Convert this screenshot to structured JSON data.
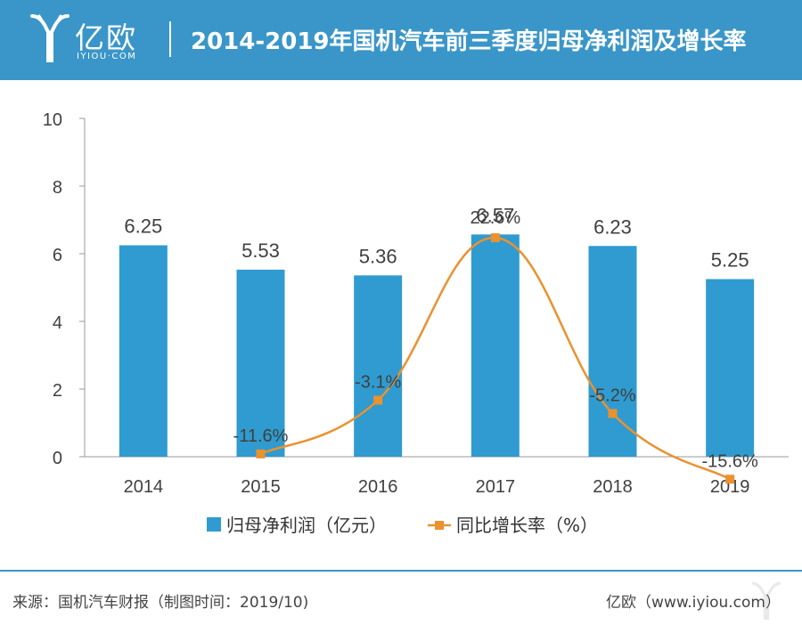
{
  "header": {
    "logo_cn": "亿欧",
    "logo_en": "IYIOU·COM",
    "title": "2014-2019年国机汽车前三季度归母净利润及增长率"
  },
  "colors": {
    "header_bg": "#3a96c8",
    "bar": "#2f9bd0",
    "line": "#eb912f",
    "axis": "#404040"
  },
  "chart_data": {
    "type": "bar+line",
    "categories": [
      "2014",
      "2015",
      "2016",
      "2017",
      "2018",
      "2019"
    ],
    "series": [
      {
        "name": "归母净利润（亿元）",
        "type": "bar",
        "values": [
          6.25,
          5.53,
          5.36,
          6.57,
          6.23,
          5.25
        ],
        "labels": [
          "6.25",
          "5.53",
          "5.36",
          "6.57",
          "6.23",
          "5.25"
        ]
      },
      {
        "name": "同比增长率（%）",
        "type": "line",
        "smooth": true,
        "values": [
          null,
          -11.6,
          -3.1,
          22.6,
          -5.2,
          -15.6
        ],
        "labels": [
          "",
          "-11.6%",
          "-3.1%",
          "22.6%",
          "-5.2%",
          "-15.6%"
        ]
      }
    ],
    "ylim": [
      0,
      10
    ],
    "yticks": [
      0,
      2,
      4,
      6,
      8,
      10
    ],
    "legend": "bottom",
    "grid": false
  },
  "footer": {
    "source": "来源：国机汽车财报（制图时间：2019/10)",
    "site": "亿欧（www.iyiou.com）"
  }
}
